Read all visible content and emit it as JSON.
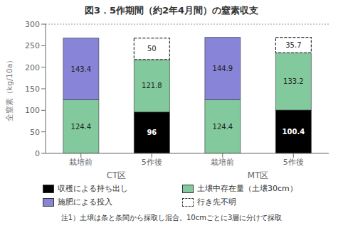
{
  "chart_data": {
    "type": "bar",
    "stacked": true,
    "data_labels": true,
    "grid": false,
    "legend": "bottom",
    "title": "図3．5作期間（約2年4月間）の窒素収支",
    "annotations": [
      "注1）土壌は条と条間から採取し混合。10cmごとに3層に分けて採取"
    ],
    "y_label": "全窒素（kg/10a）",
    "categories": [
      "栽培前",
      "5作後",
      "栽培前",
      "5作後"
    ],
    "category_groups": [
      "CT区",
      "CT区",
      "MT区",
      "MT区"
    ],
    "ylim": [
      0,
      300
    ],
    "yticks": [
      0,
      50,
      100,
      150,
      200,
      250,
      300
    ],
    "series": [
      {
        "name": "収穫による持ち出し",
        "color": "#000000",
        "values": [
          null,
          96,
          null,
          100.4
        ]
      },
      {
        "name": "土壌中存在量（土壌30cm）",
        "color": "#82ca9d",
        "values": [
          124.4,
          121.8,
          124.4,
          133.2
        ]
      },
      {
        "name": "施肥による投入",
        "color": "#8884d8",
        "values": [
          143.4,
          null,
          144.9,
          null
        ]
      },
      {
        "name": "行き先不明",
        "color": "#ffffff",
        "line_style": "dashed",
        "values": [
          null,
          50,
          null,
          35.7
        ]
      }
    ]
  }
}
